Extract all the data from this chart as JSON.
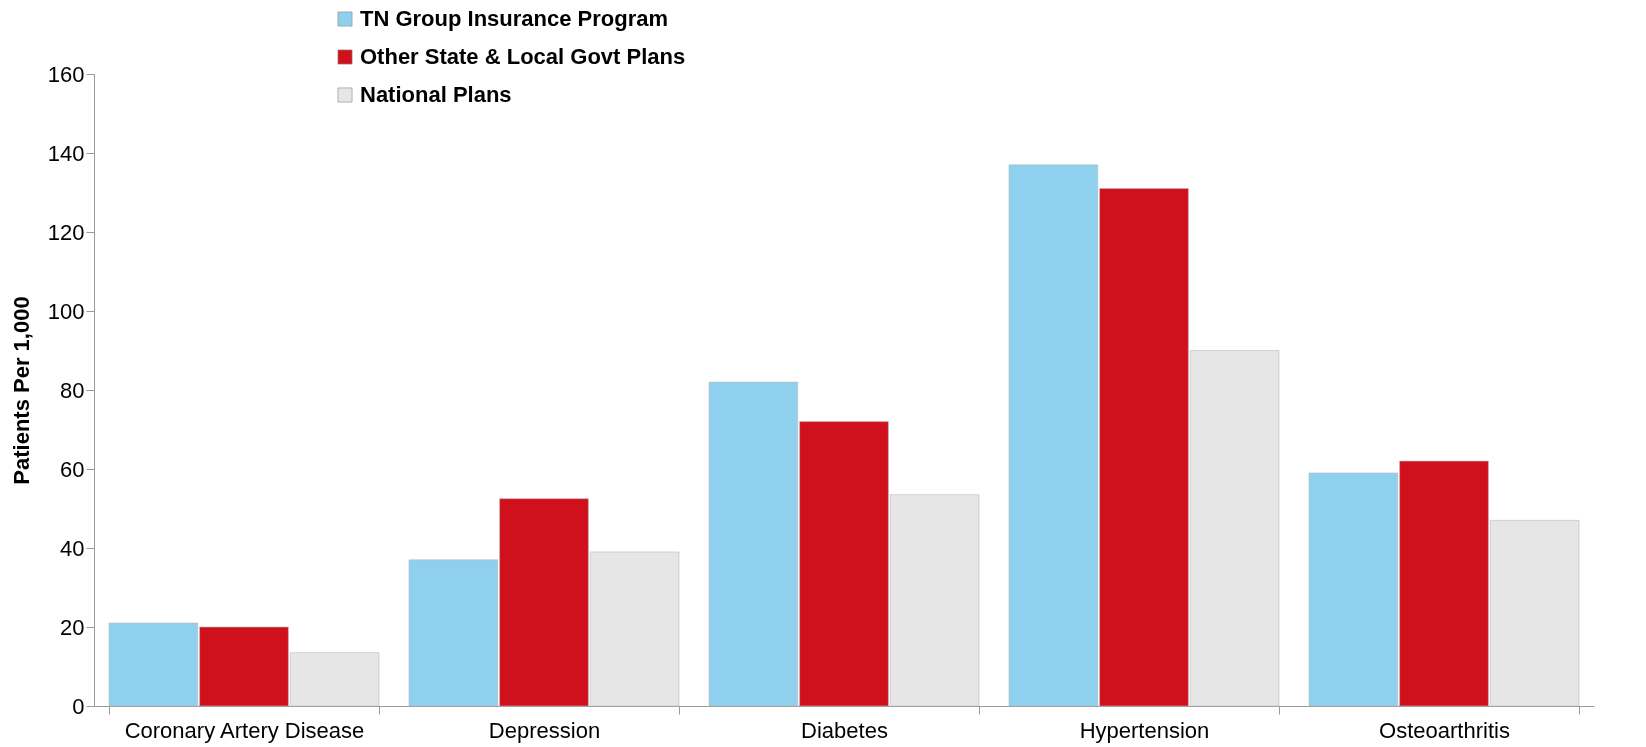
{
  "chart_data": {
    "type": "bar",
    "ylabel": "Patients Per 1,000",
    "categories": [
      "Coronary Artery Disease",
      "Depression",
      "Diabetes",
      "Hypertension",
      "Osteoarthritis"
    ],
    "series": [
      {
        "name": "TN Group Insurance Program",
        "color": "#8fd0ee",
        "values": [
          21,
          37,
          82,
          137,
          59
        ]
      },
      {
        "name": "Other State & Local Govt Plans",
        "color": "#d0101c",
        "values": [
          20,
          52.5,
          72,
          131,
          62
        ]
      },
      {
        "name": "National Plans",
        "color": "#e6e6e6",
        "values": [
          13.5,
          39,
          53.5,
          90,
          47
        ]
      }
    ],
    "ylim": [
      0,
      160
    ],
    "yticks": [
      0,
      20,
      40,
      60,
      80,
      100,
      120,
      140,
      160
    ],
    "grid": false,
    "legend": "top left"
  }
}
